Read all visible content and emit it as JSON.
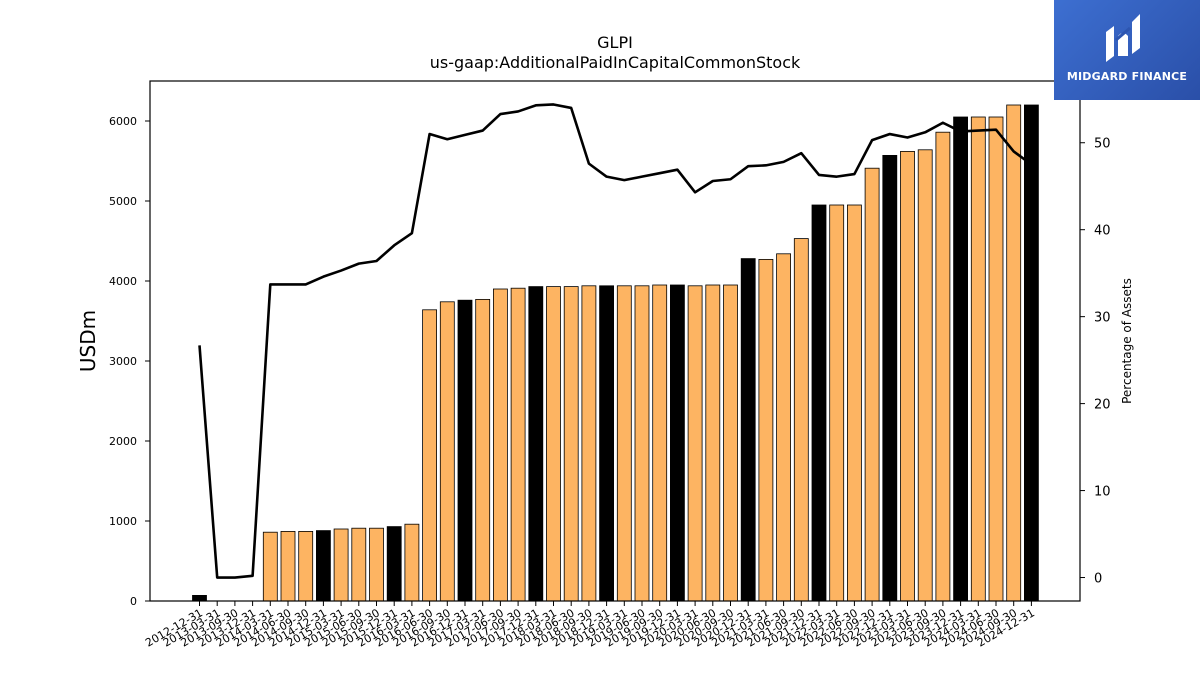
{
  "logo": {
    "text": "MIDGARD FINANCE",
    "icon": "midgard-m-icon",
    "background": "#2d55b0"
  },
  "colors": {
    "bar_normal": "#fdb462",
    "bar_year_end": "#000000",
    "line": "#000000"
  },
  "chart_data": {
    "type": "bar",
    "title": "GLPI",
    "subtitle": "us-gaap:AdditionalPaidInCapitalCommonStock",
    "ylabel": "USDm",
    "y2label": "Percentage of Assets",
    "ylim": [
      0,
      6500
    ],
    "y2lim": [
      -2.7,
      57.1
    ],
    "yticks": [
      0,
      1000,
      2000,
      3000,
      4000,
      5000,
      6000
    ],
    "y2ticks": [
      0,
      10,
      20,
      30,
      40,
      50
    ],
    "grid": false,
    "categories": [
      "2012-12-31",
      "2013-03-31",
      "2013-09-30",
      "2013-12-31",
      "2014-03-31",
      "2014-06-30",
      "2014-09-30",
      "2014-12-31",
      "2015-03-31",
      "2015-06-30",
      "2015-09-30",
      "2015-12-31",
      "2016-03-31",
      "2016-06-30",
      "2016-09-30",
      "2016-12-31",
      "2017-03-31",
      "2017-06-30",
      "2017-09-30",
      "2017-12-31",
      "2018-03-31",
      "2018-06-30",
      "2018-09-30",
      "2018-12-31",
      "2019-03-31",
      "2019-06-30",
      "2019-09-30",
      "2019-12-31",
      "2020-03-31",
      "2020-06-30",
      "2020-09-30",
      "2020-12-31",
      "2021-03-31",
      "2021-06-30",
      "2021-09-30",
      "2021-12-31",
      "2022-03-31",
      "2022-06-30",
      "2022-09-30",
      "2022-12-31",
      "2023-03-31",
      "2023-06-30",
      "2023-09-30",
      "2023-12-31",
      "2024-03-31",
      "2024-06-30",
      "2024-09-30",
      "2024-12-31"
    ],
    "series": [
      {
        "type": "bar",
        "values": [
          70,
          0,
          0,
          0,
          860,
          870,
          870,
          880,
          900,
          910,
          910,
          930,
          960,
          3640,
          3740,
          3760,
          3770,
          3900,
          3910,
          3930,
          3930,
          3930,
          3940,
          3940,
          3940,
          3940,
          3950,
          3950,
          3940,
          3950,
          3950,
          4280,
          4270,
          4340,
          4530,
          4950,
          4950,
          4950,
          5410,
          5570,
          5620,
          5640,
          5860,
          6050,
          6050,
          6050,
          6200,
          6200
        ],
        "year_end": [
          true,
          false,
          false,
          false,
          false,
          false,
          false,
          true,
          false,
          false,
          false,
          true,
          false,
          false,
          false,
          true,
          false,
          false,
          false,
          true,
          false,
          false,
          false,
          true,
          false,
          false,
          false,
          true,
          false,
          false,
          false,
          true,
          false,
          false,
          false,
          true,
          false,
          false,
          false,
          true,
          false,
          false,
          false,
          true,
          false,
          false,
          false,
          true
        ]
      },
      {
        "type": "line",
        "axis": "right",
        "values": [
          26.7,
          0.0,
          0.0,
          0.2,
          33.7,
          33.7,
          33.7,
          34.6,
          35.3,
          36.1,
          36.4,
          38.2,
          39.6,
          51.0,
          50.4,
          50.9,
          51.4,
          53.3,
          53.6,
          54.3,
          54.4,
          54.0,
          47.6,
          46.1,
          45.7,
          46.1,
          46.5,
          46.9,
          44.3,
          45.6,
          45.8,
          47.3,
          47.4,
          47.8,
          48.8,
          46.3,
          46.1,
          46.4,
          50.3,
          51.0,
          50.6,
          51.2,
          52.3,
          51.3,
          51.4,
          51.5,
          49.0,
          47.5
        ]
      }
    ]
  }
}
